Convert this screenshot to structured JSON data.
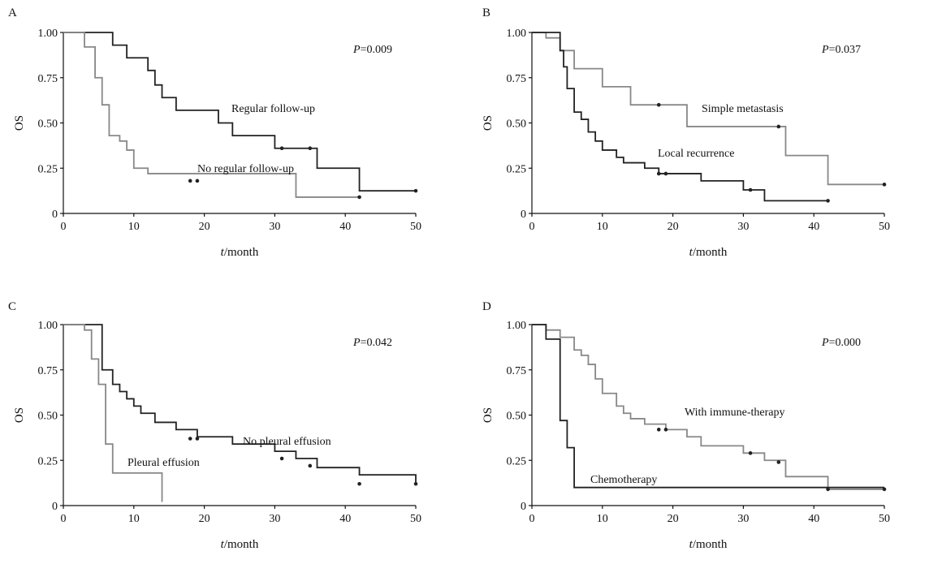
{
  "chart_data": [
    {
      "panel": "A",
      "type": "line",
      "step": true,
      "xlabel_var": "t",
      "xlabel_unit": "/month",
      "ylabel": "OS",
      "xlim": [
        0,
        50
      ],
      "ylim": [
        0,
        1
      ],
      "x_ticks": [
        "0",
        "10",
        "20",
        "30",
        "40",
        "50"
      ],
      "y_ticks": [
        "0",
        "0.25",
        "0.50",
        "0.75",
        "1.00"
      ],
      "pvalue_var": "P",
      "pvalue_text": "=0.009",
      "series": [
        {
          "label": "Regular follow-up",
          "color": "#222222",
          "x": [
            0,
            7,
            9,
            12,
            13,
            14,
            16,
            22,
            24,
            30,
            36,
            42,
            50
          ],
          "y": [
            1.0,
            0.93,
            0.86,
            0.79,
            0.71,
            0.64,
            0.57,
            0.5,
            0.43,
            0.36,
            0.25,
            0.125,
            0.125
          ],
          "censored": [
            [
              31,
              0.36
            ],
            [
              35,
              0.36
            ],
            [
              50,
              0.125
            ]
          ]
        },
        {
          "label": "No regular follow-up",
          "color": "#888888",
          "x": [
            0,
            3,
            4.5,
            5.5,
            6.5,
            8,
            9,
            10,
            12,
            33,
            42
          ],
          "y": [
            1.0,
            0.92,
            0.75,
            0.6,
            0.43,
            0.4,
            0.35,
            0.25,
            0.22,
            0.09,
            0.09
          ],
          "censored": [
            [
              18,
              0.18
            ],
            [
              19,
              0.18
            ],
            [
              42,
              0.09
            ]
          ]
        }
      ]
    },
    {
      "panel": "B",
      "type": "line",
      "step": true,
      "xlabel_var": "t",
      "xlabel_unit": "/month",
      "ylabel": "OS",
      "xlim": [
        0,
        50
      ],
      "ylim": [
        0,
        1
      ],
      "x_ticks": [
        "0",
        "10",
        "20",
        "30",
        "40",
        "50"
      ],
      "y_ticks": [
        "0",
        "0.25",
        "0.50",
        "0.75",
        "1.00"
      ],
      "pvalue_var": "P",
      "pvalue_text": "=0.037",
      "series": [
        {
          "label": "Simple metastasis",
          "color": "#888888",
          "x": [
            0,
            2,
            4,
            6,
            10,
            14,
            22,
            36,
            42,
            50
          ],
          "y": [
            1.0,
            0.97,
            0.9,
            0.8,
            0.7,
            0.6,
            0.48,
            0.32,
            0.16,
            0.16
          ],
          "censored": [
            [
              18,
              0.6
            ],
            [
              35,
              0.48
            ],
            [
              50,
              0.16
            ]
          ]
        },
        {
          "label": "Local recurrence",
          "color": "#222222",
          "x": [
            0,
            4,
            4.5,
            5,
            6,
            7,
            8,
            9,
            10,
            12,
            13,
            16,
            18,
            24,
            30,
            33,
            42
          ],
          "y": [
            1.0,
            0.9,
            0.81,
            0.69,
            0.56,
            0.52,
            0.45,
            0.4,
            0.35,
            0.31,
            0.28,
            0.25,
            0.22,
            0.18,
            0.13,
            0.07,
            0.07
          ],
          "censored": [
            [
              18,
              0.22
            ],
            [
              19,
              0.22
            ],
            [
              31,
              0.13
            ],
            [
              42,
              0.07
            ]
          ]
        }
      ]
    },
    {
      "panel": "C",
      "type": "line",
      "step": true,
      "xlabel_var": "t",
      "xlabel_unit": "/month",
      "ylabel": "OS",
      "xlim": [
        0,
        50
      ],
      "ylim": [
        0,
        1
      ],
      "x_ticks": [
        "0",
        "10",
        "20",
        "30",
        "40",
        "50"
      ],
      "y_ticks": [
        "0",
        "0.25",
        "0.50",
        "0.75",
        "1.00"
      ],
      "pvalue_var": "P",
      "pvalue_text": "=0.042",
      "series": [
        {
          "label": "No pleural effusion",
          "color": "#222222",
          "x": [
            0,
            5.5,
            7,
            8,
            9,
            10,
            11,
            13,
            16,
            19,
            24,
            30,
            33,
            36,
            42,
            50
          ],
          "y": [
            1.0,
            0.75,
            0.67,
            0.63,
            0.59,
            0.55,
            0.51,
            0.46,
            0.42,
            0.38,
            0.34,
            0.3,
            0.26,
            0.21,
            0.17,
            0.12
          ],
          "censored": [
            [
              18,
              0.37
            ],
            [
              19,
              0.37
            ],
            [
              31,
              0.26
            ],
            [
              35,
              0.22
            ],
            [
              42,
              0.12
            ],
            [
              50,
              0.12
            ]
          ]
        },
        {
          "label": "Pleural effusion",
          "color": "#888888",
          "x": [
            0,
            3,
            4,
            5,
            6,
            7,
            14,
            14
          ],
          "y": [
            1.0,
            0.97,
            0.81,
            0.67,
            0.34,
            0.18,
            0.18,
            0.02
          ],
          "censored": []
        }
      ]
    },
    {
      "panel": "D",
      "type": "line",
      "step": true,
      "xlabel_var": "t",
      "xlabel_unit": "/month",
      "ylabel": "OS",
      "xlim": [
        0,
        50
      ],
      "ylim": [
        0,
        1
      ],
      "x_ticks": [
        "0",
        "10",
        "20",
        "30",
        "40",
        "50"
      ],
      "y_ticks": [
        "0",
        "0.25",
        "0.50",
        "0.75",
        "1.00"
      ],
      "pvalue_var": "P",
      "pvalue_text": "=0.000",
      "series": [
        {
          "label": "With immune-therapy",
          "color": "#888888",
          "x": [
            0,
            2,
            4,
            6,
            7,
            8,
            9,
            10,
            12,
            13,
            14,
            16,
            19,
            22,
            24,
            30,
            33,
            36,
            42,
            50
          ],
          "y": [
            1.0,
            0.97,
            0.93,
            0.86,
            0.83,
            0.78,
            0.7,
            0.62,
            0.55,
            0.51,
            0.48,
            0.45,
            0.42,
            0.38,
            0.33,
            0.29,
            0.25,
            0.16,
            0.09,
            0.09
          ],
          "censored": [
            [
              18,
              0.42
            ],
            [
              19,
              0.42
            ],
            [
              31,
              0.29
            ],
            [
              35,
              0.24
            ],
            [
              42,
              0.09
            ],
            [
              50,
              0.09
            ]
          ]
        },
        {
          "label": "Chemotherapy",
          "color": "#222222",
          "x": [
            0,
            2,
            4,
            5,
            6,
            50
          ],
          "y": [
            1.0,
            0.92,
            0.47,
            0.32,
            0.1,
            0.1
          ],
          "censored": []
        }
      ]
    }
  ]
}
